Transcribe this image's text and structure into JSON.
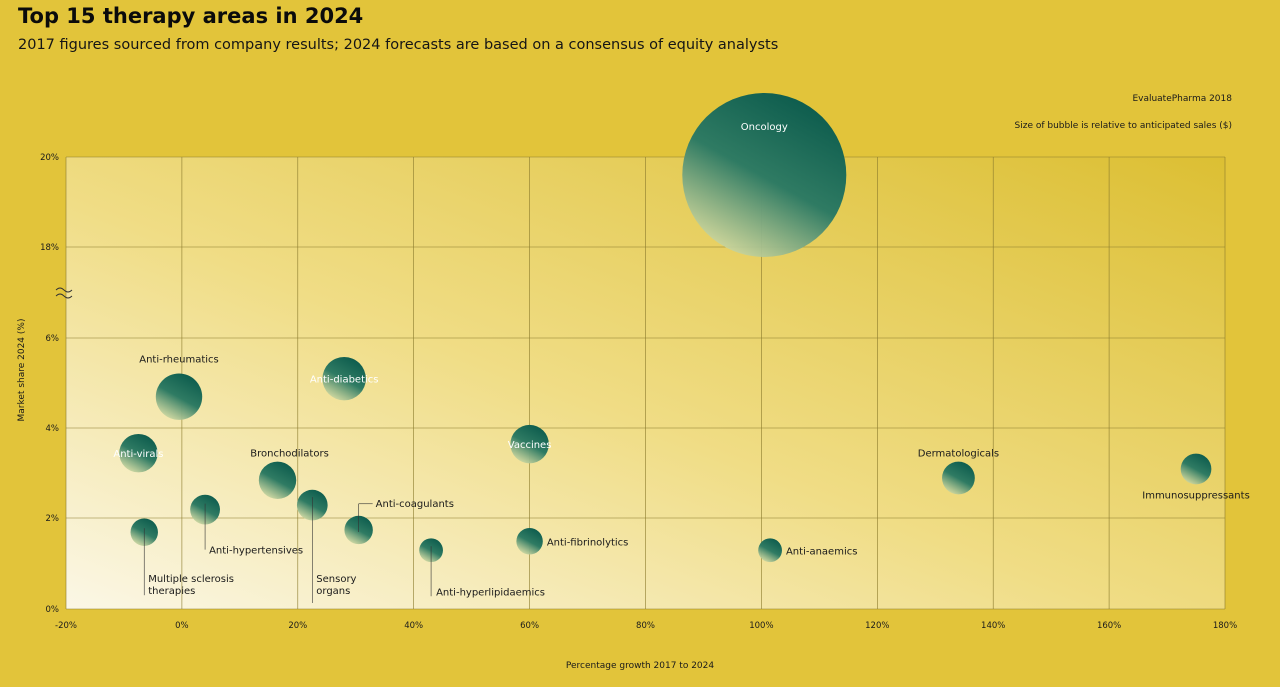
{
  "title": "Top 15 therapy areas in 2024",
  "subtitle": "2017 figures sourced from company results; 2024 forecasts are based on a consensus of equity analysts",
  "source": "EvaluatePharma 2018",
  "size_note": "Size of bubble is relative to anticipated sales ($)",
  "colors": {
    "background": "#e2c43a",
    "bubble_dark": "#0d5c4e",
    "bubble_light": "#d8dba0",
    "grid": "#8a7a2c"
  },
  "chart_data": {
    "type": "scatter",
    "subtype": "bubble",
    "xlabel": "Percentage growth 2017 to 2024",
    "ylabel": "Market share 2024 (%)",
    "xlim": [
      -20,
      180
    ],
    "x_ticks": [
      -20,
      0,
      20,
      40,
      60,
      80,
      100,
      120,
      140,
      160,
      180
    ],
    "x_tick_labels": [
      "-20%",
      "0%",
      "20%",
      "40%",
      "60%",
      "80%",
      "100%",
      "120%",
      "140%",
      "160%",
      "180%"
    ],
    "y_ticks": [
      0,
      2,
      4,
      6,
      18,
      20
    ],
    "y_tick_labels": [
      "0%",
      "2%",
      "4%",
      "6%",
      "18%",
      "20%"
    ],
    "y_axis_break": "between 6% and 18%",
    "grid": true,
    "points": [
      {
        "label": "Oncology",
        "x": 100.5,
        "y": 19.6,
        "size": 100
      },
      {
        "label": "Anti-rheumatics",
        "x": -0.5,
        "y": 4.7,
        "size": 8
      },
      {
        "label": "Anti-diabetics",
        "x": 28,
        "y": 5.1,
        "size": 7
      },
      {
        "label": "Anti-virals",
        "x": -7.5,
        "y": 3.45,
        "size": 5.5
      },
      {
        "label": "Vaccines",
        "x": 60,
        "y": 3.65,
        "size": 5.5
      },
      {
        "label": "Bronchodilators",
        "x": 16.5,
        "y": 2.85,
        "size": 5.2
      },
      {
        "label": "Sensory organs",
        "x": 22.5,
        "y": 2.3,
        "size": 3.5
      },
      {
        "label": "Anti-hypertensives",
        "x": 4,
        "y": 2.2,
        "size": 3.3
      },
      {
        "label": "Anti-coagulants",
        "x": 30.5,
        "y": 1.75,
        "size": 3
      },
      {
        "label": "Multiple sclerosis therapies",
        "x": -6.5,
        "y": 1.7,
        "size": 2.8
      },
      {
        "label": "Dermatologicals",
        "x": 134,
        "y": 2.9,
        "size": 4
      },
      {
        "label": "Immunosuppressants",
        "x": 175,
        "y": 3.1,
        "size": 3.5
      },
      {
        "label": "Anti-fibrinolytics",
        "x": 60,
        "y": 1.5,
        "size": 2.6
      },
      {
        "label": "Anti-hyperlipidaemics",
        "x": 43,
        "y": 1.3,
        "size": 2.1
      },
      {
        "label": "Anti-anaemics",
        "x": 101.5,
        "y": 1.3,
        "size": 2.1
      }
    ]
  }
}
